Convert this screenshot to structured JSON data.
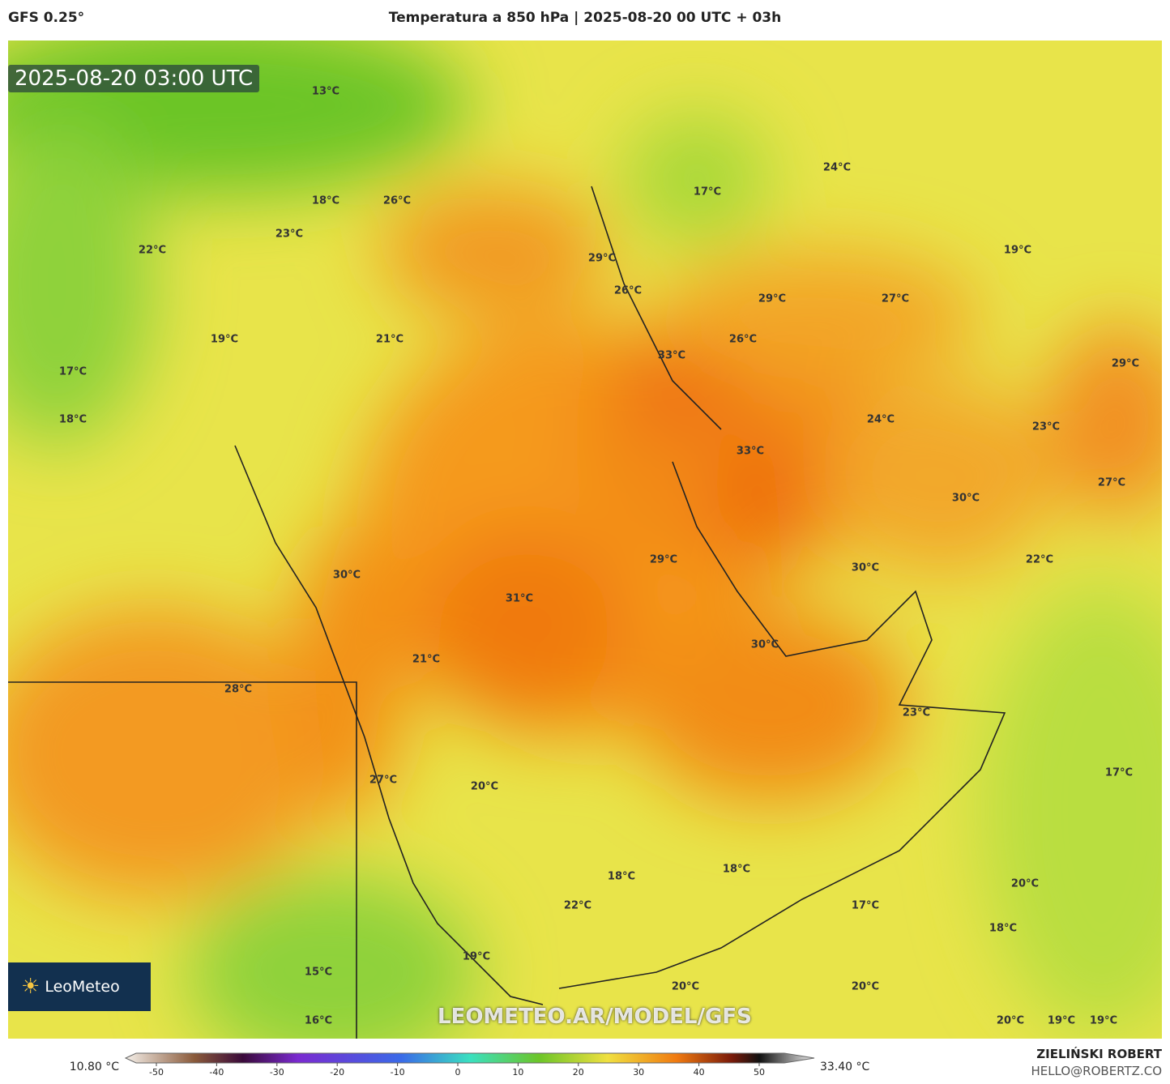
{
  "header": {
    "model": "GFS 0.25°",
    "title": "Temperatura a 850 hPa | 2025-08-20 00 UTC + 03h"
  },
  "map": {
    "timestamp": "2025-08-20 03:00 UTC",
    "watermark": "LEOMETEO.AR/MODEL/GFS",
    "logo": "LeoMeteo",
    "labels": [
      "13°C",
      "18°C",
      "26°C",
      "23°C",
      "22°C",
      "19°C",
      "21°C",
      "17°C",
      "18°C",
      "24°C",
      "17°C",
      "19°C",
      "29°C",
      "26°C",
      "29°C",
      "27°C",
      "26°C",
      "33°C",
      "29°C",
      "24°C",
      "23°C",
      "33°C",
      "27°C",
      "30°C",
      "22°C",
      "29°C",
      "30°C",
      "30°C",
      "31°C",
      "30°C",
      "21°C",
      "28°C",
      "23°C",
      "17°C",
      "27°C",
      "20°C",
      "18°C",
      "18°C",
      "20°C",
      "22°C",
      "17°C",
      "18°C",
      "19°C",
      "15°C",
      "20°C",
      "20°C",
      "16°C",
      "20°C",
      "19°C",
      "19°C"
    ]
  },
  "colorbar": {
    "min_label": "10.80 °C",
    "max_label": "33.40 °C",
    "ticks": [
      -50,
      -40,
      -30,
      -20,
      -10,
      0,
      10,
      20,
      30,
      40,
      50
    ]
  },
  "footer": {
    "author": "ZIELIŃSKI ROBERT",
    "contact": "HELLO@ROBERTZ.CO"
  }
}
